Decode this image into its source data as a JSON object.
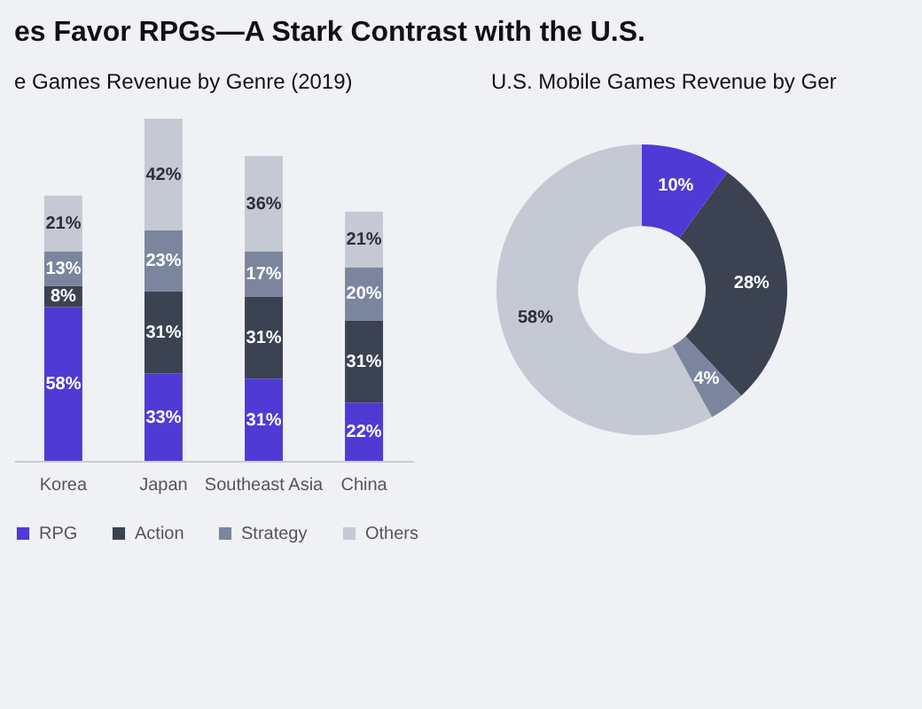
{
  "chart_data": [
    {
      "type": "bar",
      "title": "es Favor RPGs—A Stark Contrast with the U.S.",
      "subtitle": "e Games Revenue by Genre (2019)",
      "categories": [
        "Korea",
        "Japan",
        "Southeast Asia",
        "China"
      ],
      "stacked": true,
      "legend": "bottom",
      "series": [
        {
          "name": "RPG",
          "color": "#4f3ad6",
          "values": [
            58,
            33,
            31,
            22
          ],
          "value_labels": [
            "58%",
            "33%",
            "31%",
            "22%"
          ]
        },
        {
          "name": "Action",
          "color": "#3b4252",
          "values": [
            8,
            31,
            31,
            31
          ],
          "value_labels": [
            "8%",
            "31%",
            "31%",
            "31%"
          ]
        },
        {
          "name": "Strategy",
          "color": "#7b869e",
          "values": [
            13,
            23,
            17,
            20
          ],
          "value_labels": [
            "13%",
            "23%",
            "17%",
            "20%"
          ]
        },
        {
          "name": "Others",
          "color": "#c5c9d4",
          "values": [
            21,
            42,
            36,
            21
          ],
          "value_labels": [
            "21%",
            "42%",
            "36%",
            "21%"
          ]
        }
      ]
    },
    {
      "type": "donut",
      "title": "U.S. Mobile Games Revenue by Ger",
      "categories": [
        null,
        null,
        null,
        null
      ],
      "values": [
        10,
        28,
        4,
        58
      ],
      "colors": [
        "#4f3ad6",
        "#3b4252",
        "#7b869e",
        "#c5c9d4"
      ],
      "value_labels": [
        "10%",
        "28%",
        "4%",
        "58%"
      ],
      "legend": false
    }
  ]
}
